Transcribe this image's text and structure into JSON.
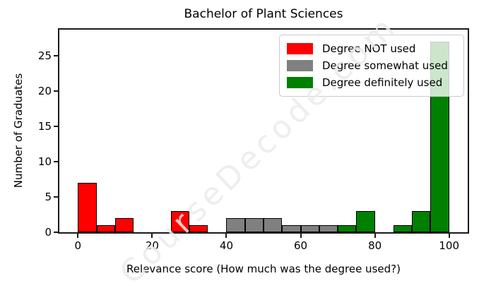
{
  "chart_data": {
    "type": "histogram",
    "title": "Bachelor of Plant Sciences",
    "xlabel": "Relevance score (How much was the degree used?)",
    "ylabel": "Number of Graduates",
    "watermark": "CourseDecode.com",
    "xlim": [
      -5,
      105
    ],
    "ylim": [
      0,
      28.7
    ],
    "x_ticks": [
      0,
      20,
      40,
      60,
      80,
      100
    ],
    "y_ticks": [
      0,
      5,
      10,
      15,
      20,
      25
    ],
    "bin_width": 5,
    "grid": false,
    "legend_position": "upper right",
    "series": [
      {
        "name": "Degree NOT used",
        "color": "#ff0000",
        "bins": [
          {
            "start": 0,
            "count": 7
          },
          {
            "start": 5,
            "count": 1
          },
          {
            "start": 10,
            "count": 2
          },
          {
            "start": 25,
            "count": 3
          },
          {
            "start": 30,
            "count": 1
          }
        ]
      },
      {
        "name": "Degree somewhat used",
        "color": "#808080",
        "bins": [
          {
            "start": 40,
            "count": 2
          },
          {
            "start": 45,
            "count": 2
          },
          {
            "start": 50,
            "count": 2
          },
          {
            "start": 55,
            "count": 1
          },
          {
            "start": 60,
            "count": 1
          },
          {
            "start": 65,
            "count": 1
          }
        ]
      },
      {
        "name": "Degree definitely used",
        "color": "#008000",
        "bins": [
          {
            "start": 70,
            "count": 1
          },
          {
            "start": 75,
            "count": 3
          },
          {
            "start": 85,
            "count": 1
          },
          {
            "start": 90,
            "count": 3
          },
          {
            "start": 95,
            "count": 27
          }
        ]
      }
    ]
  }
}
